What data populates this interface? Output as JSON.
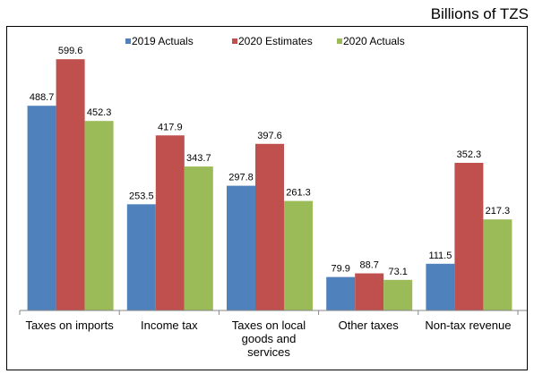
{
  "unit_label": "Billions of TZS",
  "chart_data": {
    "type": "bar",
    "categories": [
      [
        "Taxes on imports"
      ],
      [
        "Income tax"
      ],
      [
        "Taxes on local",
        "goods and",
        "services"
      ],
      [
        "Other taxes"
      ],
      [
        "Non-tax revenue"
      ]
    ],
    "series": [
      {
        "name": "2019 Actuals",
        "color": "#4f81bd",
        "values": [
          488.7,
          253.5,
          297.8,
          79.9,
          111.5
        ]
      },
      {
        "name": "2020 Estimates",
        "color": "#c0504d",
        "values": [
          599.6,
          417.9,
          397.6,
          88.7,
          352.3
        ]
      },
      {
        "name": "2020 Actuals",
        "color": "#9bbb59",
        "values": [
          452.3,
          343.7,
          261.3,
          73.1,
          217.3
        ]
      }
    ],
    "value_labels": [
      [
        "488.7",
        "253.5",
        "297.8",
        "79.9",
        "111.5"
      ],
      [
        "599.6",
        "417.9",
        "397.6",
        "88.7",
        "352.3"
      ],
      [
        "452.3",
        "343.7",
        "261.3",
        "73.1",
        "217.3"
      ]
    ],
    "legend_position": "top",
    "grid": false,
    "ylim": [
      0,
      630
    ]
  }
}
